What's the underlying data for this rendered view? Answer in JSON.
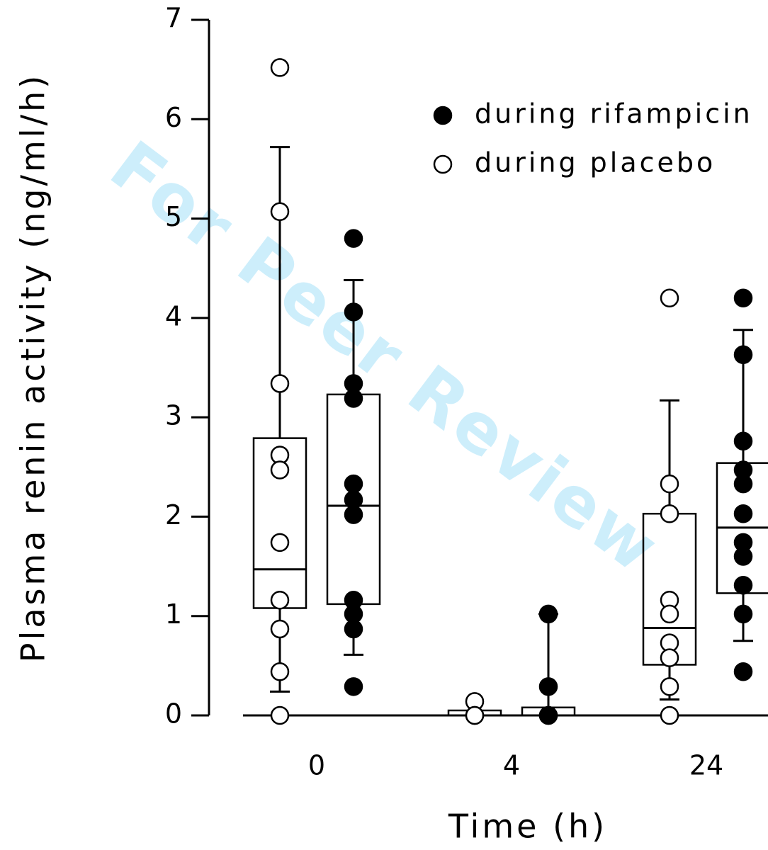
{
  "chart_data": {
    "type": "box",
    "y_label": "Plasma renin activity (ng/ml/h)",
    "x_label": "Time (h)",
    "watermark": "For Peer Review",
    "categories": [
      "0",
      "4",
      "24"
    ],
    "ylim": [
      0,
      7
    ],
    "yticks": [
      0,
      1,
      2,
      3,
      4,
      5,
      6,
      7
    ],
    "series": [
      {
        "name": "during placebo",
        "color": "#000000",
        "fill": "#ffffff",
        "boxes": [
          {
            "q1": 1.08,
            "median": 1.47,
            "q3": 2.79,
            "whislo": 0.24,
            "whishi": 5.72,
            "points": [
              6.52,
              5.07,
              3.34,
              2.62,
              2.47,
              1.74,
              1.16,
              0.87,
              0.44,
              0
            ]
          },
          {
            "q1": 0,
            "median": 0,
            "q3": 0.05,
            "whislo": 0,
            "whishi": 0.05,
            "points": [
              0.14,
              0,
              0
            ]
          },
          {
            "q1": 0.51,
            "median": 0.88,
            "q3": 2.03,
            "whislo": 0.16,
            "whishi": 3.17,
            "points": [
              4.2,
              2.33,
              2.03,
              1.16,
              1.02,
              0.73,
              0.58,
              0.29,
              0
            ]
          }
        ]
      },
      {
        "name": "during rifampicin",
        "color": "#000000",
        "fill": "#000000",
        "boxes": [
          {
            "q1": 1.12,
            "median": 2.11,
            "q3": 3.23,
            "whislo": 0.61,
            "whishi": 4.38,
            "points": [
              4.8,
              4.06,
              3.34,
              3.19,
              2.33,
              2.17,
              2.02,
              1.16,
              1.02,
              0.87,
              0.29
            ]
          },
          {
            "q1": 0,
            "median": 0,
            "q3": 0.08,
            "whislo": 0,
            "whishi": 1.02,
            "points": [
              1.02,
              0.29,
              0,
              0
            ]
          },
          {
            "q1": 1.23,
            "median": 1.89,
            "q3": 2.54,
            "whislo": 0.75,
            "whishi": 3.88,
            "points": [
              4.2,
              3.63,
              2.76,
              2.47,
              2.33,
              2.03,
              1.74,
              1.6,
              1.31,
              1.02,
              0.44
            ]
          }
        ]
      }
    ]
  }
}
